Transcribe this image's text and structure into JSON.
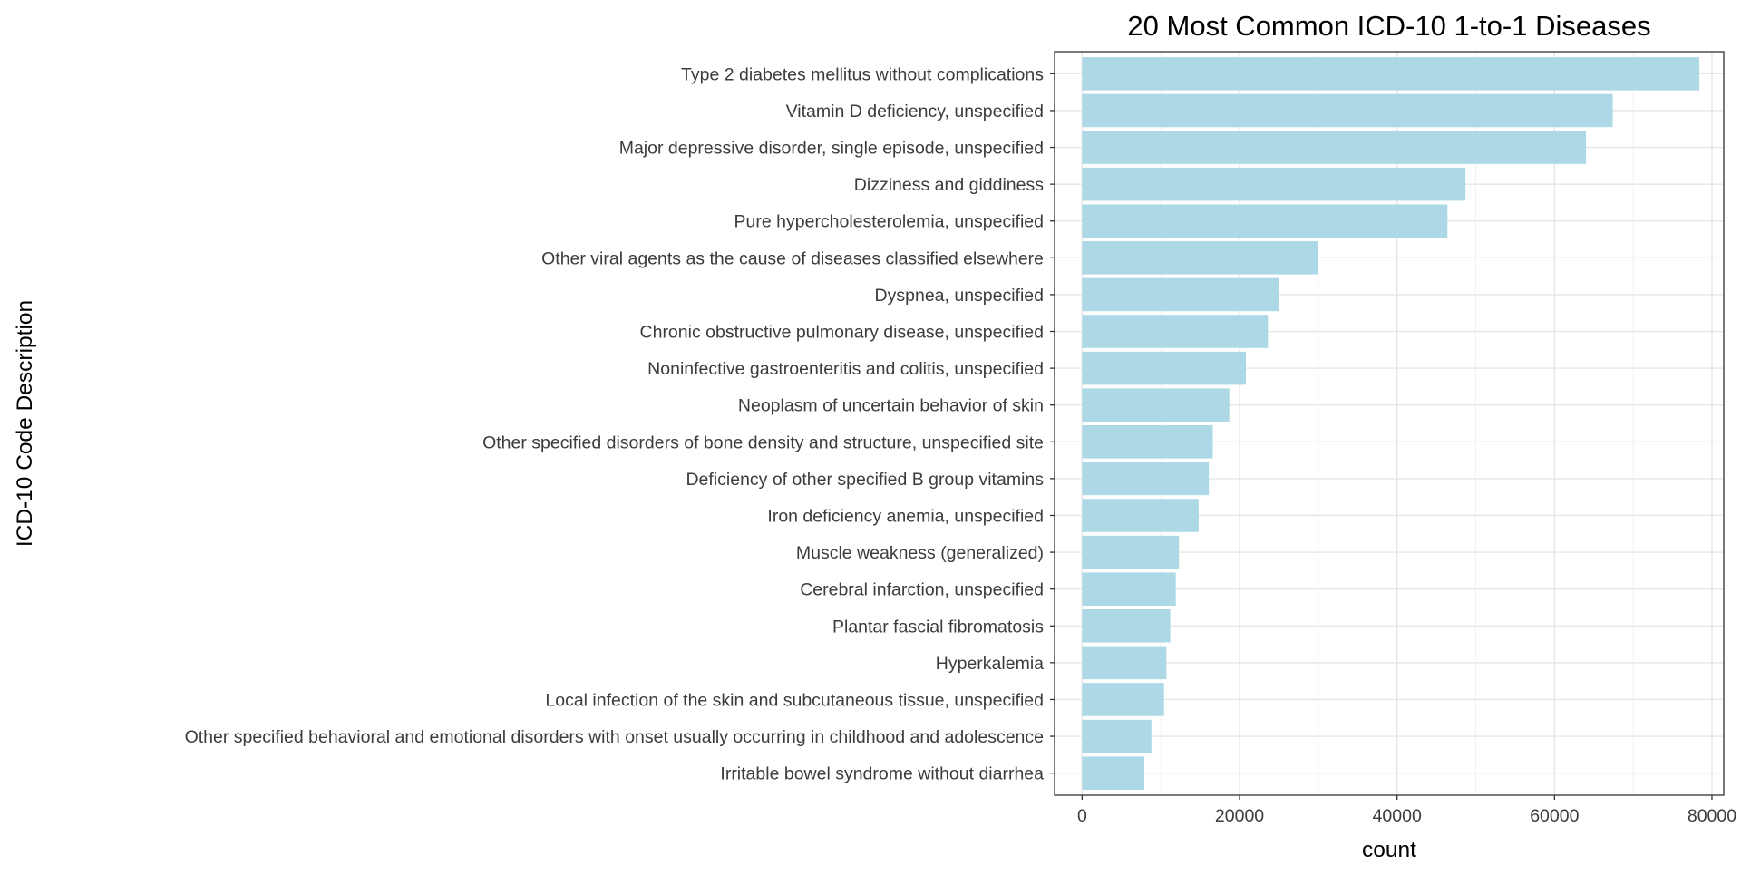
{
  "chart_data": {
    "type": "bar",
    "orientation": "horizontal",
    "title": "20 Most Common ICD-10 1-to-1 Diseases",
    "xlabel": "count",
    "ylabel": "ICD-10 Code Description",
    "xlim": [
      -3500,
      81500
    ],
    "x_ticks": [
      0,
      20000,
      40000,
      60000,
      80000
    ],
    "x_tick_labels": [
      "0",
      "20000",
      "40000",
      "60000",
      "80000"
    ],
    "grid": true,
    "legend": "none",
    "categories": [
      "Type 2 diabetes mellitus without complications",
      "Vitamin D deficiency, unspecified",
      "Major depressive disorder, single episode, unspecified",
      "Dizziness and giddiness",
      "Pure hypercholesterolemia, unspecified",
      "Other viral agents as the cause of diseases classified elsewhere",
      "Dyspnea, unspecified",
      "Chronic obstructive pulmonary disease, unspecified",
      "Noninfective gastroenteritis and colitis, unspecified",
      "Neoplasm of uncertain behavior of skin",
      "Other specified disorders of bone density and structure, unspecified site",
      "Deficiency of other specified B group vitamins",
      "Iron deficiency anemia, unspecified",
      "Muscle weakness (generalized)",
      "Cerebral infarction, unspecified",
      "Plantar fascial fibromatosis",
      "Hyperkalemia",
      "Local infection of the skin and subcutaneous tissue, unspecified",
      "Other specified behavioral and emotional disorders with onset usually occurring in childhood and adolescence",
      "Irritable bowel syndrome without diarrhea"
    ],
    "values": [
      78400,
      67400,
      64000,
      48700,
      46400,
      29900,
      25000,
      23600,
      20800,
      18700,
      16600,
      16100,
      14800,
      12300,
      11900,
      11200,
      10700,
      10400,
      8800,
      7900
    ],
    "bar_color": "#add8e6"
  }
}
